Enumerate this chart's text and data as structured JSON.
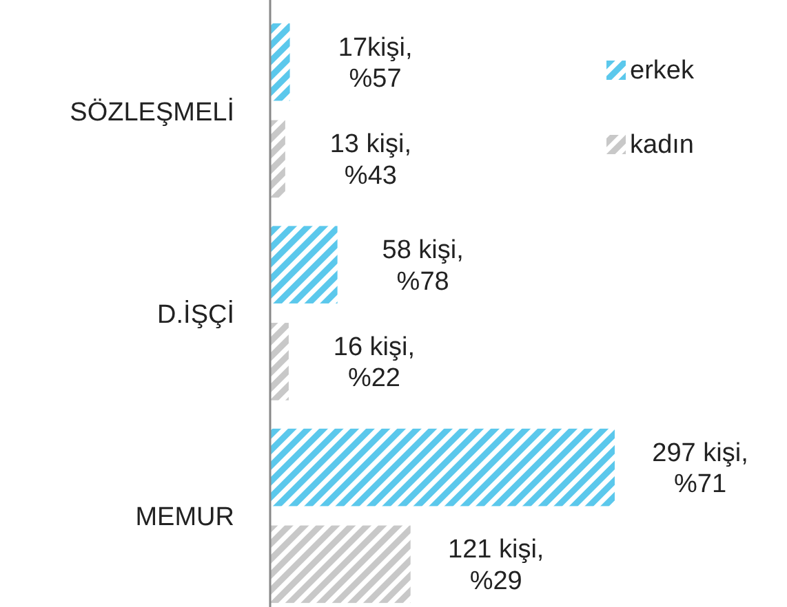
{
  "chart_data": {
    "type": "bar",
    "orientation": "horizontal",
    "categories": [
      "SÖZLEŞMELİ",
      "D.İŞÇİ",
      "MEMUR"
    ],
    "series": [
      {
        "name": "erkek",
        "color": "#5bc8ec",
        "values": [
          17,
          58,
          297
        ],
        "value_labels": [
          "17kişi,\n%57",
          "58 kişi,\n%78",
          "297 kişi,\n%71"
        ]
      },
      {
        "name": "kadın",
        "color": "#c8c8c8",
        "values": [
          13,
          16,
          121
        ],
        "value_labels": [
          "13 kişi,\n%43",
          "16 kişi,\n%22",
          "121 kişi,\n%29"
        ]
      }
    ],
    "legend": "top right"
  }
}
